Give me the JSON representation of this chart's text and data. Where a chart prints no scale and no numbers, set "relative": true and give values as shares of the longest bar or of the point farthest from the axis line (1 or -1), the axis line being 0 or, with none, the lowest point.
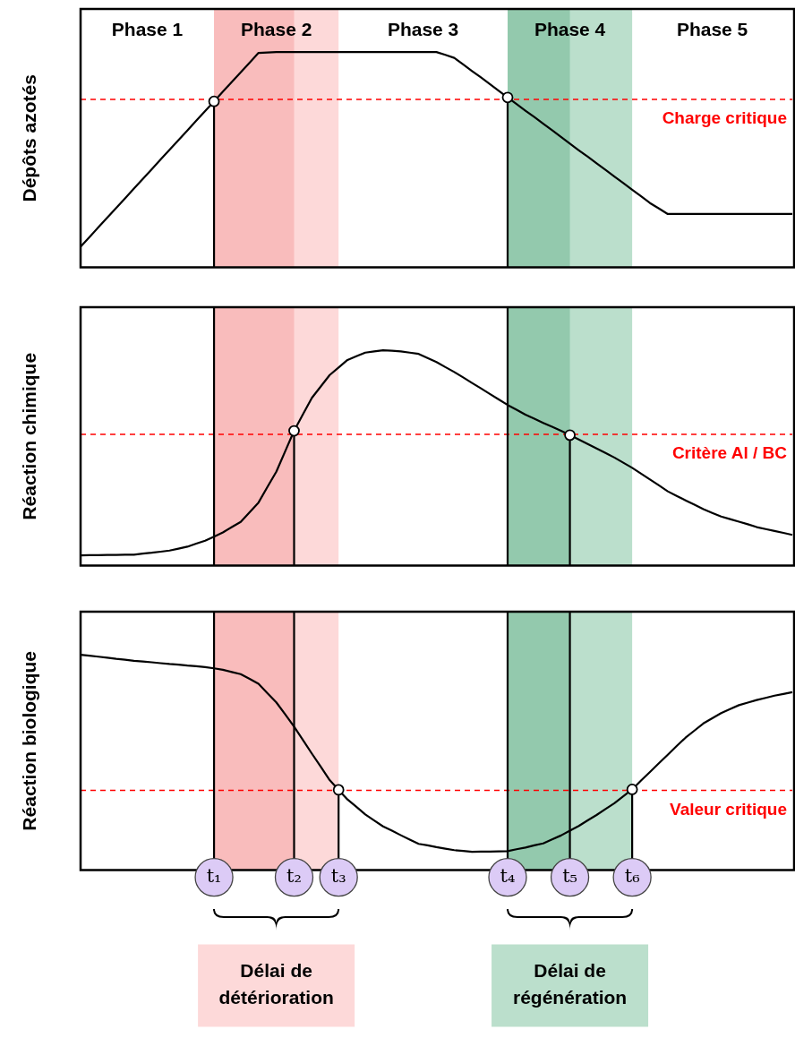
{
  "chart_data": [
    {
      "type": "line",
      "ylabel": "Dépôts azotés",
      "relative": true,
      "marker": "none",
      "grid": "x",
      "categories": [
        null,
        null,
        null,
        null,
        null,
        null,
        null,
        null,
        null,
        null,
        null,
        null,
        null,
        null,
        null,
        null,
        null,
        null,
        null,
        null,
        null,
        null,
        null,
        null,
        null,
        null,
        null,
        null,
        null,
        null,
        null,
        null,
        null,
        null,
        null,
        null,
        null,
        null,
        null,
        null,
        null,
        null,
        null,
        null,
        null,
        null,
        null,
        null,
        null,
        null,
        null,
        null,
        null,
        null,
        null,
        null,
        null,
        null,
        null,
        null,
        null,
        null,
        null,
        null,
        null,
        null,
        null,
        null,
        null,
        null,
        null,
        null,
        null,
        null,
        null,
        null,
        null,
        null,
        null,
        null,
        null
      ],
      "series": [
        {
          "color": "#000000",
          "values": [
            0.096,
            0.141,
            0.186,
            0.231,
            0.276,
            0.321,
            0.366,
            0.411,
            0.456,
            0.501,
            0.546,
            0.591,
            0.636,
            0.681,
            0.726,
            0.771,
            0.816,
            0.861,
            0.906,
            0.951,
            0.996,
            0.998,
            1,
            1,
            1,
            1,
            1,
            1,
            1,
            1,
            1,
            1,
            1,
            1,
            1,
            1,
            1,
            1,
            1,
            1,
            1,
            0.987,
            0.973,
            0.943,
            0.912,
            0.882,
            0.851,
            0.82,
            0.789,
            0.759,
            0.728,
            0.698,
            0.667,
            0.637,
            0.606,
            0.575,
            0.544,
            0.514,
            0.483,
            0.453,
            0.422,
            0.392,
            0.361,
            0.33,
            0.299,
            0.274,
            0.248,
            0.248,
            0.248,
            0.248,
            0.248,
            0.248,
            0.248,
            0.248,
            0.248,
            0.248,
            0.248,
            0.248,
            0.248,
            0.248,
            0.248
          ]
        }
      ],
      "ref_lines": [
        {
          "axis": "y",
          "value": 0.78,
          "label": "Charge critique",
          "color": "#ff0000",
          "line_style": "dashed"
        }
      ],
      "annotations": [
        "Phase 1",
        "Phase 2",
        "Phase 3",
        "Phase 4",
        "Phase 5"
      ]
    },
    {
      "type": "line",
      "ylabel": "Réaction chimique",
      "relative": true,
      "marker": "none",
      "grid": "x",
      "categories": [
        null,
        null,
        null,
        null,
        null,
        null,
        null,
        null,
        null,
        null,
        null,
        null,
        null,
        null,
        null,
        null,
        null,
        null,
        null,
        null,
        null,
        null,
        null,
        null,
        null,
        null,
        null,
        null,
        null,
        null,
        null,
        null,
        null,
        null,
        null,
        null,
        null,
        null,
        null,
        null,
        null,
        null,
        null,
        null,
        null,
        null,
        null,
        null,
        null,
        null,
        null,
        null,
        null,
        null,
        null,
        null,
        null,
        null,
        null,
        null,
        null,
        null,
        null,
        null,
        null,
        null,
        null,
        null,
        null,
        null,
        null,
        null,
        null,
        null,
        null,
        null,
        null,
        null,
        null,
        null,
        null
      ],
      "series": [
        {
          "color": "#000000",
          "values": [
            0.048,
            0.049,
            0.049,
            0.05,
            0.05,
            0.051,
            0.051,
            0.056,
            0.06,
            0.065,
            0.07,
            0.079,
            0.088,
            0.102,
            0.116,
            0.135,
            0.154,
            0.179,
            0.203,
            0.248,
            0.293,
            0.365,
            0.436,
            0.531,
            0.626,
            0.703,
            0.779,
            0.832,
            0.885,
            0.92,
            0.955,
            0.972,
            0.989,
            0.995,
            1,
            0.998,
            0.995,
            0.989,
            0.983,
            0.964,
            0.945,
            0.922,
            0.899,
            0.874,
            0.848,
            0.823,
            0.797,
            0.772,
            0.746,
            0.724,
            0.701,
            0.682,
            0.663,
            0.645,
            0.626,
            0.606,
            0.586,
            0.565,
            0.544,
            0.523,
            0.502,
            0.478,
            0.454,
            0.427,
            0.4,
            0.373,
            0.345,
            0.324,
            0.303,
            0.283,
            0.262,
            0.245,
            0.228,
            0.216,
            0.204,
            0.192,
            0.179,
            0.17,
            0.161,
            0.152,
            0.143
          ]
        }
      ],
      "ref_lines": [
        {
          "axis": "y",
          "value": 0.61,
          "label": "Critère Al / BC",
          "color": "#ff0000",
          "line_style": "dashed"
        }
      ]
    },
    {
      "type": "line",
      "ylabel": "Réaction biologique",
      "relative": true,
      "marker": "none",
      "grid": "x",
      "categories": [
        null,
        null,
        null,
        null,
        null,
        null,
        null,
        null,
        null,
        null,
        null,
        null,
        null,
        null,
        null,
        null,
        null,
        null,
        null,
        null,
        null,
        null,
        null,
        null,
        null,
        null,
        null,
        null,
        null,
        null,
        null,
        null,
        null,
        null,
        null,
        null,
        null,
        null,
        null,
        null,
        null,
        null,
        null,
        null,
        null,
        null,
        null,
        null,
        null,
        null,
        null,
        null,
        null,
        null,
        null,
        null,
        null,
        null,
        null,
        null,
        null,
        null,
        null,
        null,
        null,
        null,
        null,
        null,
        null,
        null,
        null,
        null,
        null,
        null,
        null,
        null,
        null,
        null,
        null,
        null,
        null
      ],
      "series": [
        {
          "color": "#000000",
          "values": [
            1,
            0.996,
            0.991,
            0.986,
            0.981,
            0.977,
            0.972,
            0.969,
            0.965,
            0.961,
            0.957,
            0.954,
            0.95,
            0.947,
            0.943,
            0.937,
            0.93,
            0.92,
            0.91,
            0.888,
            0.865,
            0.822,
            0.779,
            0.723,
            0.666,
            0.604,
            0.541,
            0.48,
            0.418,
            0.373,
            0.328,
            0.294,
            0.259,
            0.231,
            0.203,
            0.183,
            0.162,
            0.142,
            0.122,
            0.115,
            0.107,
            0.1,
            0.093,
            0.089,
            0.085,
            0.086,
            0.086,
            0.087,
            0.088,
            0.097,
            0.105,
            0.115,
            0.124,
            0.143,
            0.161,
            0.183,
            0.205,
            0.231,
            0.256,
            0.284,
            0.311,
            0.343,
            0.375,
            0.416,
            0.456,
            0.496,
            0.536,
            0.576,
            0.615,
            0.648,
            0.681,
            0.705,
            0.729,
            0.748,
            0.766,
            0.778,
            0.79,
            0.8,
            0.81,
            0.818,
            0.826
          ]
        }
      ],
      "ref_lines": [
        {
          "axis": "y",
          "value": 0.37,
          "label": "Valeur critique",
          "color": "#ff0000",
          "line_style": "dashed"
        }
      ],
      "annotations": [
        "t₁",
        "t₂",
        "t₃",
        "t₄",
        "t₅",
        "t₆",
        "Délai de détérioration",
        "Délai de régénération"
      ]
    }
  ]
}
